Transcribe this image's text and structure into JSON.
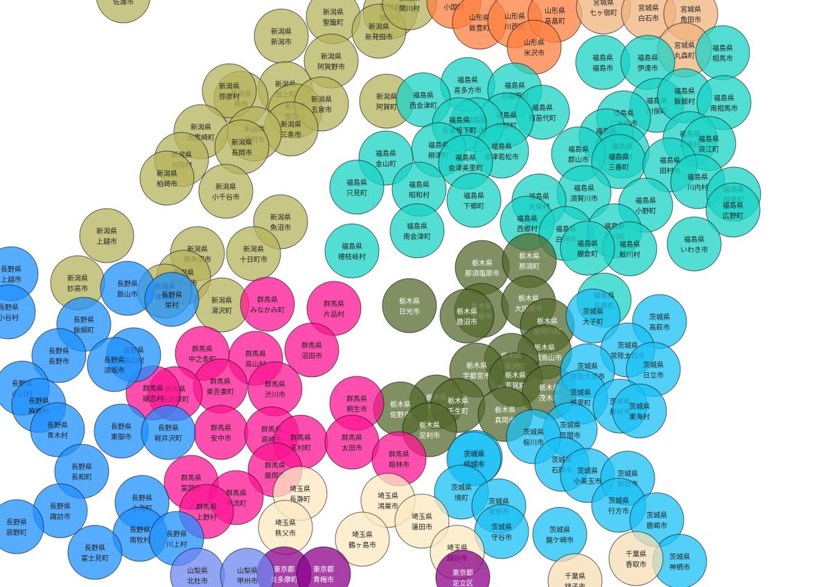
{
  "map": {
    "prefecture_colors": {
      "新潟県": "#b5b35c",
      "山形県": "#ff7f3f",
      "宮城県": "#f0b37e",
      "福島県": "#19d3c5",
      "栃木県": "#556b2f",
      "群馬県": "#ff1493",
      "長野県": "#1e90ff",
      "茨城県": "#1ac0f5",
      "埼玉県": "#fde8c0",
      "千葉県": "#f5deb3",
      "東京都": "#8b008b",
      "山梨県": "#6d86f0"
    },
    "markers": [
      {
        "pref": "新潟県",
        "name": "佐渡市"
      },
      {
        "pref": "新潟県",
        "name": "聖籠町"
      },
      {
        "pref": "新潟県",
        "name": "新潟市"
      },
      {
        "pref": "新潟県",
        "name": "胎内市"
      },
      {
        "pref": "新潟県",
        "name": "新発田市"
      },
      {
        "pref": "新潟県",
        "name": "関川村"
      },
      {
        "pref": "新潟県",
        "name": "阿賀野市"
      },
      {
        "pref": "新潟県",
        "name": "田上町"
      },
      {
        "pref": "新潟県",
        "name": "燕市"
      },
      {
        "pref": "新潟県",
        "name": "弥彦村"
      },
      {
        "pref": "新潟県",
        "name": "加茂市"
      },
      {
        "pref": "新潟県",
        "name": "五泉市"
      },
      {
        "pref": "新潟県",
        "name": "三条市"
      },
      {
        "pref": "新潟県",
        "name": "出雲崎町"
      },
      {
        "pref": "新潟県",
        "name": "見附市"
      },
      {
        "pref": "新潟県",
        "name": "長岡市"
      },
      {
        "pref": "新潟県",
        "name": "刈羽村"
      },
      {
        "pref": "新潟県",
        "name": "柏崎市"
      },
      {
        "pref": "新潟県",
        "name": "小千谷市"
      },
      {
        "pref": "新潟県",
        "name": "阿賀町"
      },
      {
        "pref": "新潟県",
        "name": "上越市"
      },
      {
        "pref": "新潟県",
        "name": "魚沼市"
      },
      {
        "pref": "新潟県",
        "name": "南魚沼市"
      },
      {
        "pref": "新潟県",
        "name": "十日町市"
      },
      {
        "pref": "新潟県",
        "name": "妙高市"
      },
      {
        "pref": "新潟県",
        "name": "糸魚川市"
      },
      {
        "pref": "新潟県",
        "name": "津南町"
      },
      {
        "pref": "新潟県",
        "name": "湯沢町"
      },
      {
        "pref": "山形県",
        "name": "小国町"
      },
      {
        "pref": "山形県",
        "name": "飯豊町"
      },
      {
        "pref": "山形県",
        "name": "川西町"
      },
      {
        "pref": "山形県",
        "name": "高畠町"
      },
      {
        "pref": "山形県",
        "name": "米沢市"
      },
      {
        "pref": "宮城県",
        "name": "七ヶ宿町"
      },
      {
        "pref": "宮城県",
        "name": "白石市"
      },
      {
        "pref": "宮城県",
        "name": "角田市"
      },
      {
        "pref": "宮城県",
        "name": "丸森町"
      },
      {
        "pref": "福島県",
        "name": "喜多方市"
      },
      {
        "pref": "福島県",
        "name": "北塩原村"
      },
      {
        "pref": "福島県",
        "name": "西会津町"
      },
      {
        "pref": "福島県",
        "name": "猪苗代町"
      },
      {
        "pref": "福島県",
        "name": "磐梯町"
      },
      {
        "pref": "福島県",
        "name": "湯川村"
      },
      {
        "pref": "福島県",
        "name": "会津坂下町"
      },
      {
        "pref": "福島県",
        "name": "柳津町"
      },
      {
        "pref": "福島県",
        "name": "会津若松市"
      },
      {
        "pref": "福島県",
        "name": "会津美里町"
      },
      {
        "pref": "福島県",
        "name": "金山町"
      },
      {
        "pref": "福島県",
        "name": "只見町"
      },
      {
        "pref": "福島県",
        "name": "昭和村"
      },
      {
        "pref": "福島県",
        "name": "下郷町"
      },
      {
        "pref": "福島県",
        "name": "南会津町"
      },
      {
        "pref": "福島県",
        "name": "檜枝岐村"
      },
      {
        "pref": "福島県",
        "name": "福島市"
      },
      {
        "pref": "福島県",
        "name": "伊達市"
      },
      {
        "pref": "福島県",
        "name": "川俣町"
      },
      {
        "pref": "福島県",
        "name": "飯舘村"
      },
      {
        "pref": "福島県",
        "name": "相馬市"
      },
      {
        "pref": "福島県",
        "name": "南相馬市"
      },
      {
        "pref": "福島県",
        "name": "二本松市"
      },
      {
        "pref": "福島県",
        "name": "本宮市"
      },
      {
        "pref": "福島県",
        "name": "大玉村"
      },
      {
        "pref": "福島県",
        "name": "郡山市"
      },
      {
        "pref": "福島県",
        "name": "三春町"
      },
      {
        "pref": "福島県",
        "name": "葛尾村"
      },
      {
        "pref": "福島県",
        "name": "浪江町"
      },
      {
        "pref": "福島県",
        "name": "田村市"
      },
      {
        "pref": "福島県",
        "name": "川内村"
      },
      {
        "pref": "福島県",
        "name": "楢葉町"
      },
      {
        "pref": "福島県",
        "name": "広野町"
      },
      {
        "pref": "福島県",
        "name": "小野町"
      },
      {
        "pref": "福島県",
        "name": "須賀川市"
      },
      {
        "pref": "福島県",
        "name": "天栄村"
      },
      {
        "pref": "福島県",
        "name": "西郷村"
      },
      {
        "pref": "福島県",
        "name": "白河市"
      },
      {
        "pref": "福島県",
        "name": "石川町"
      },
      {
        "pref": "福島県",
        "name": "鮫川村"
      },
      {
        "pref": "福島県",
        "name": "棚倉町"
      },
      {
        "pref": "福島県",
        "name": "いわき市"
      },
      {
        "pref": "福島県",
        "name": "矢祭町"
      },
      {
        "pref": "栃木県",
        "name": "那須塩原市"
      },
      {
        "pref": "栃木県",
        "name": "那須町"
      },
      {
        "pref": "栃木県",
        "name": "日光市"
      },
      {
        "pref": "栃木県",
        "name": "矢板市"
      },
      {
        "pref": "栃木県",
        "name": "大田原市"
      },
      {
        "pref": "栃木県",
        "name": "那珂川町"
      },
      {
        "pref": "栃木県",
        "name": "那須烏山市"
      },
      {
        "pref": "栃木県",
        "name": "高根沢町"
      },
      {
        "pref": "栃木県",
        "name": "鹿沼市"
      },
      {
        "pref": "栃木県",
        "name": "宇都宮市"
      },
      {
        "pref": "栃木県",
        "name": "芳賀町"
      },
      {
        "pref": "栃木県",
        "name": "茂木町"
      },
      {
        "pref": "栃木県",
        "name": "西方町"
      },
      {
        "pref": "栃木県",
        "name": "壬生町"
      },
      {
        "pref": "栃木県",
        "name": "真岡市"
      },
      {
        "pref": "栃木県",
        "name": "佐野市"
      },
      {
        "pref": "栃木県",
        "name": "足利市"
      },
      {
        "pref": "群馬県",
        "name": "みなかみ町"
      },
      {
        "pref": "群馬県",
        "name": "片品村"
      },
      {
        "pref": "群馬県",
        "name": "沼田市"
      },
      {
        "pref": "群馬県",
        "name": "中之条町"
      },
      {
        "pref": "群馬県",
        "name": "高山村"
      },
      {
        "pref": "群馬県",
        "name": "東吾妻町"
      },
      {
        "pref": "群馬県",
        "name": "長野原町"
      },
      {
        "pref": "群馬県",
        "name": "渋川市"
      },
      {
        "pref": "群馬県",
        "name": "桐生市"
      },
      {
        "pref": "群馬県",
        "name": "安中市"
      },
      {
        "pref": "群馬県",
        "name": "高崎市"
      },
      {
        "pref": "群馬県",
        "name": "玉村町"
      },
      {
        "pref": "群馬県",
        "name": "太田市"
      },
      {
        "pref": "群馬県",
        "name": "館林市"
      },
      {
        "pref": "群馬県",
        "name": "富岡市"
      },
      {
        "pref": "群馬県",
        "name": "藤岡市"
      },
      {
        "pref": "群馬県",
        "name": "神流町"
      },
      {
        "pref": "群馬県",
        "name": "上野村"
      },
      {
        "pref": "群馬県",
        "name": "嬬恋村"
      },
      {
        "pref": "長野県",
        "name": "上越市"
      },
      {
        "pref": "長野県",
        "name": "飯山市"
      },
      {
        "pref": "長野県",
        "name": "栄村"
      },
      {
        "pref": "長野県",
        "name": "小谷村"
      },
      {
        "pref": "長野県",
        "name": "飯綱町"
      },
      {
        "pref": "長野県",
        "name": "高山村"
      },
      {
        "pref": "長野県",
        "name": "長野市"
      },
      {
        "pref": "長野県",
        "name": "小川村"
      },
      {
        "pref": "長野県",
        "name": "須坂市"
      },
      {
        "pref": "長野県",
        "name": "麻績村"
      },
      {
        "pref": "長野県",
        "name": "東御市"
      },
      {
        "pref": "長野県",
        "name": "軽井沢町"
      },
      {
        "pref": "長野県",
        "name": "青木村"
      },
      {
        "pref": "長野県",
        "name": "長和町"
      },
      {
        "pref": "長野県",
        "name": "小海町"
      },
      {
        "pref": "長野県",
        "name": "諏訪市"
      },
      {
        "pref": "長野県",
        "name": "辰野町"
      },
      {
        "pref": "長野県",
        "name": "南牧村"
      },
      {
        "pref": "長野県",
        "name": "川上村"
      },
      {
        "pref": "長野県",
        "name": "富士見町"
      },
      {
        "pref": "茨城県",
        "name": "大子町"
      },
      {
        "pref": "茨城県",
        "name": "高萩市"
      },
      {
        "pref": "茨城県",
        "name": "常陸太田市"
      },
      {
        "pref": "茨城県",
        "name": "日立市"
      },
      {
        "pref": "茨城県",
        "name": "常陸大宮市"
      },
      {
        "pref": "茨城県",
        "name": "城里町"
      },
      {
        "pref": "茨城県",
        "name": "那珂市"
      },
      {
        "pref": "茨城県",
        "name": "東海村"
      },
      {
        "pref": "茨城県",
        "name": "笠間市"
      },
      {
        "pref": "茨城県",
        "name": "桜川市"
      },
      {
        "pref": "茨城県",
        "name": "筑西市"
      },
      {
        "pref": "茨城県",
        "name": "結城市"
      },
      {
        "pref": "茨城県",
        "name": "石岡市"
      },
      {
        "pref": "茨城県",
        "name": "小美玉市"
      },
      {
        "pref": "茨城県",
        "name": "鉾田市"
      },
      {
        "pref": "茨城県",
        "name": "境町"
      },
      {
        "pref": "茨城県",
        "name": "常総市"
      },
      {
        "pref": "茨城県",
        "name": "守谷市"
      },
      {
        "pref": "茨城県",
        "name": "龍ケ崎市"
      },
      {
        "pref": "茨城県",
        "name": "行方市"
      },
      {
        "pref": "茨城県",
        "name": "鹿嶋市"
      },
      {
        "pref": "茨城県",
        "name": "神栖市"
      },
      {
        "pref": "埼玉県",
        "name": "長瀞町"
      },
      {
        "pref": "埼玉県",
        "name": "鴻巣市"
      },
      {
        "pref": "埼玉県",
        "name": "秩父市"
      },
      {
        "pref": "埼玉県",
        "name": "鶴ヶ島市"
      },
      {
        "pref": "埼玉県",
        "name": "蓮田市"
      },
      {
        "pref": "埼玉県",
        "name": "越谷市"
      },
      {
        "pref": "千葉県",
        "name": "香取市"
      },
      {
        "pref": "千葉県",
        "name": "銚子市"
      },
      {
        "pref": "東京都",
        "name": "奥多摩町"
      },
      {
        "pref": "東京都",
        "name": "青梅市"
      },
      {
        "pref": "東京都",
        "name": "足立区"
      },
      {
        "pref": "山梨県",
        "name": "北杜市"
      },
      {
        "pref": "山梨県",
        "name": "甲州市"
      }
    ]
  }
}
